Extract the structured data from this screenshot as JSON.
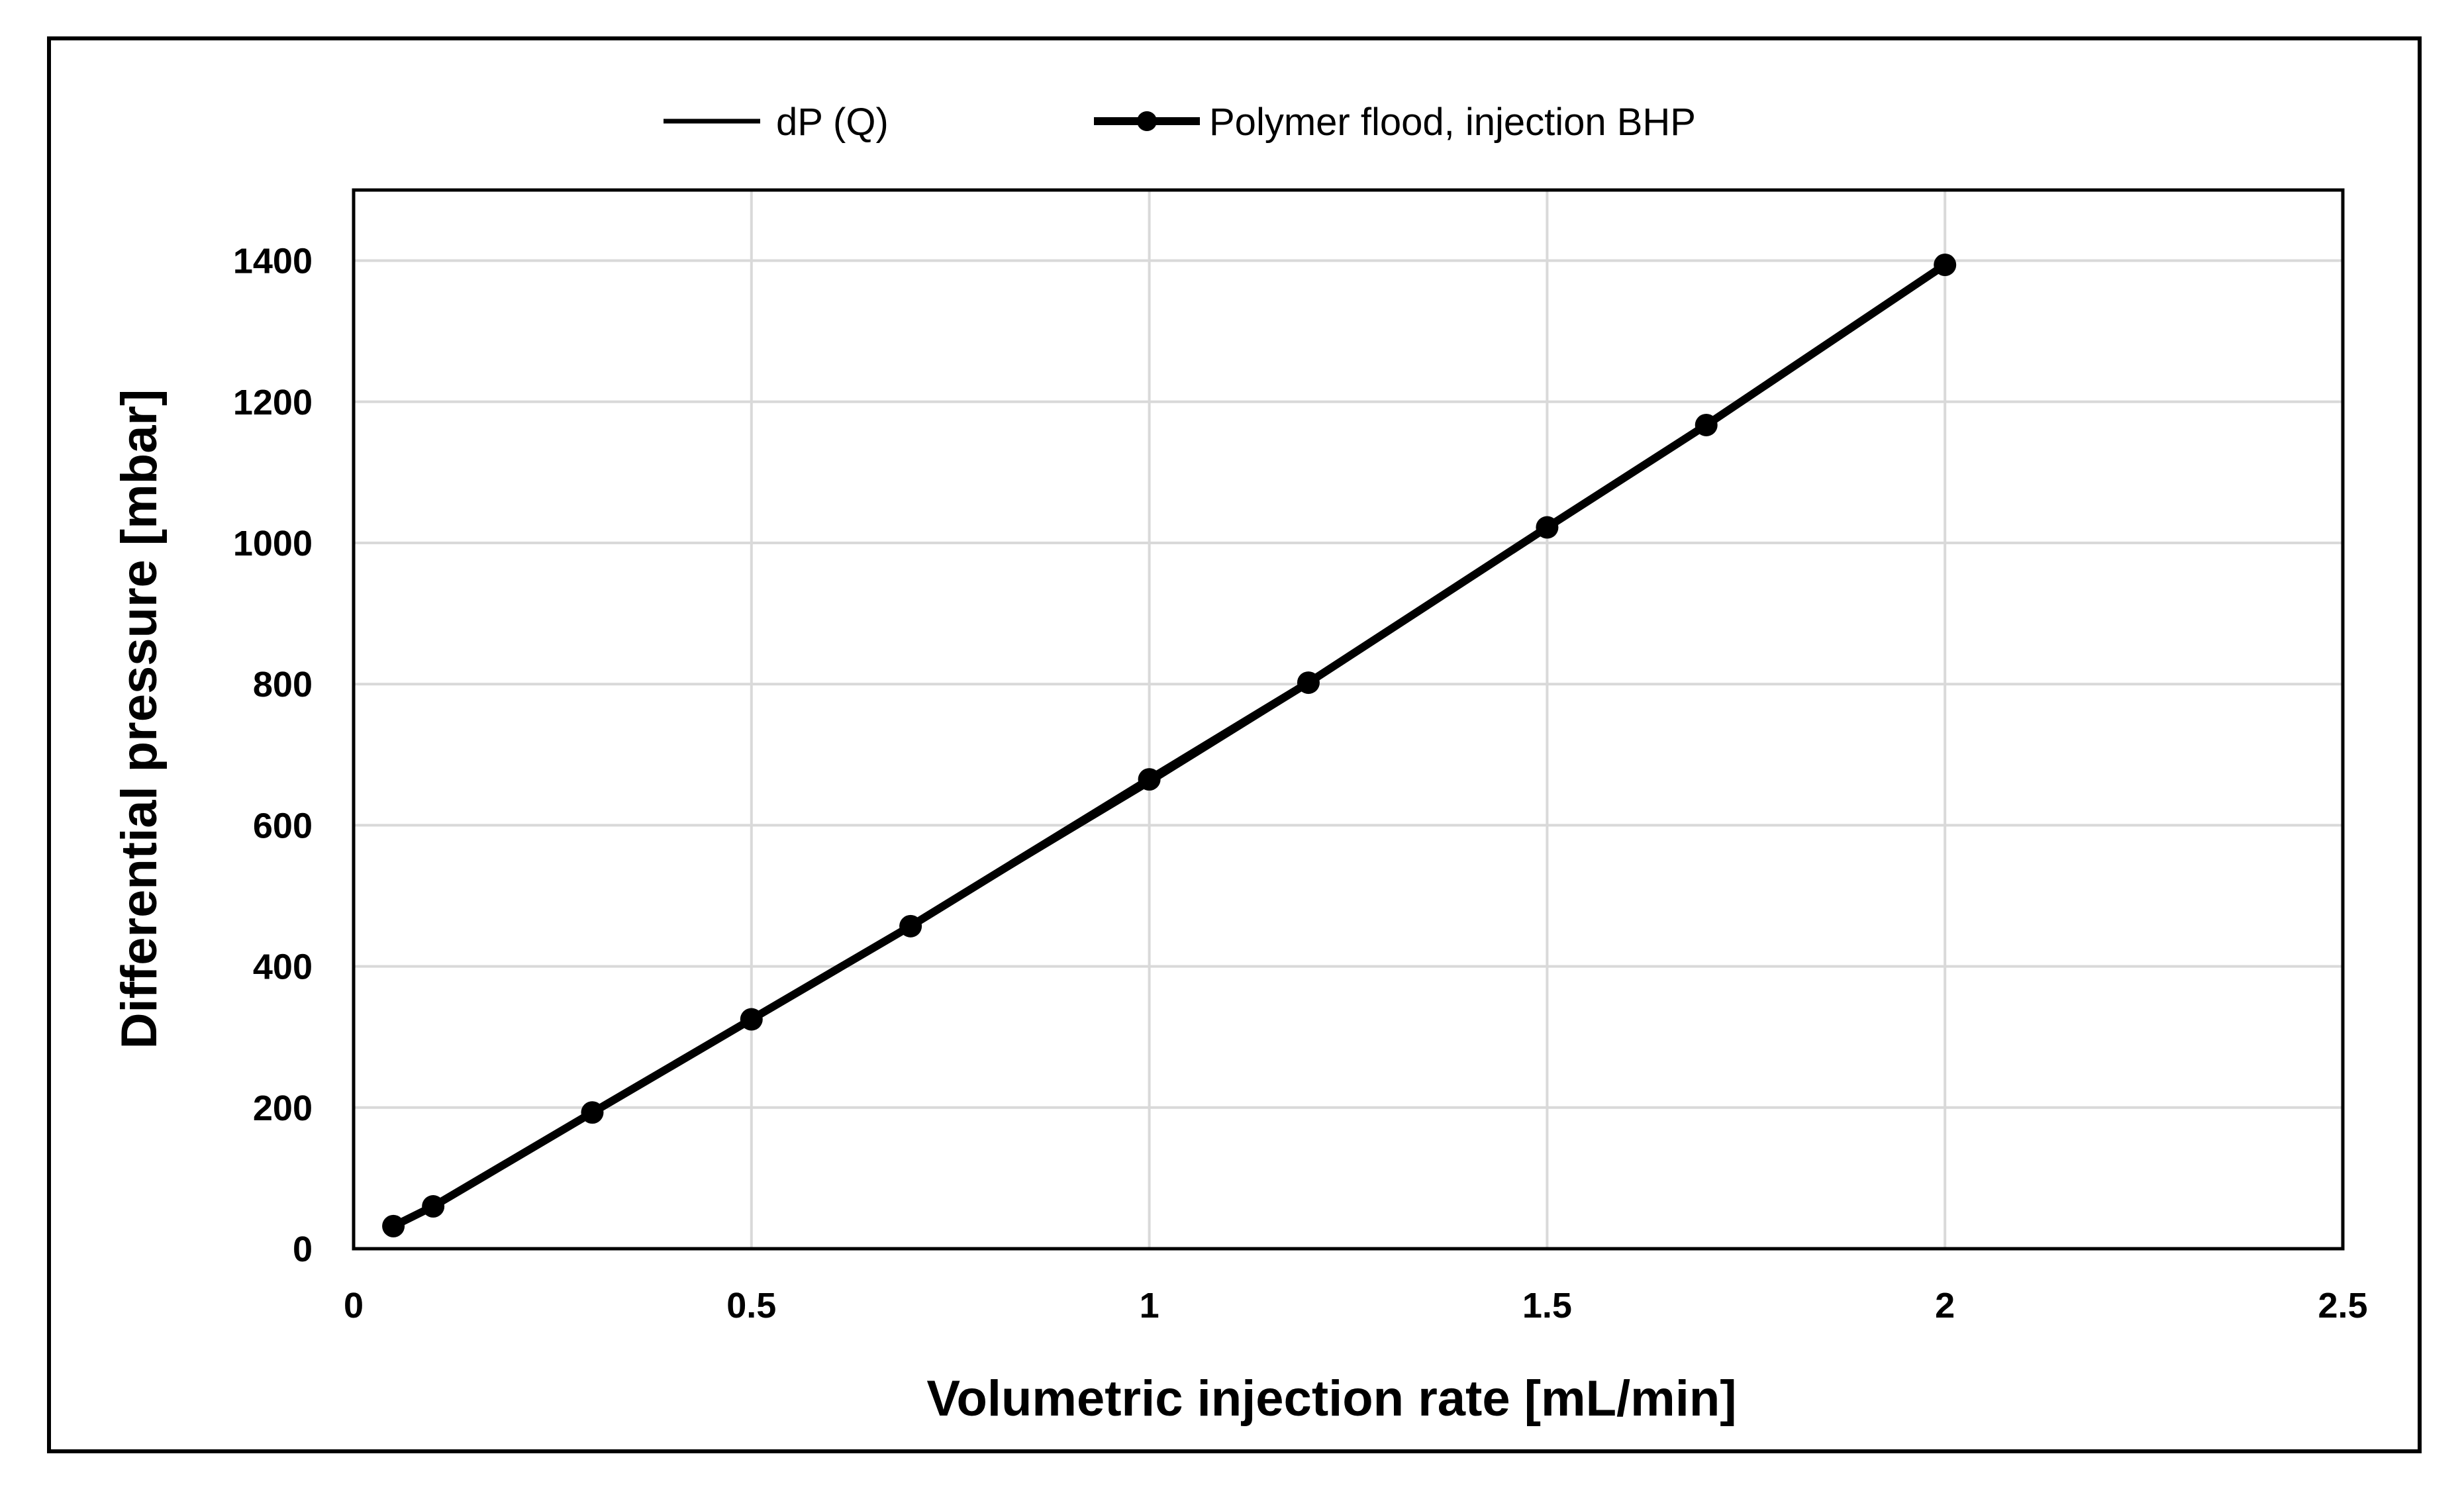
{
  "chart_data": {
    "type": "line",
    "title": "",
    "xlabel": "Volumetric injection rate [mL/min]",
    "ylabel": "Differential pressure [mbar]",
    "xlim": [
      0,
      2.5
    ],
    "ylim": [
      0,
      1500
    ],
    "xticks": [
      0,
      0.5,
      1,
      1.5,
      2,
      2.5
    ],
    "xtick_labels": [
      "0",
      "0.5",
      "1",
      "1.5",
      "2",
      "2.5"
    ],
    "yticks": [
      0,
      200,
      400,
      600,
      800,
      1000,
      1200,
      1400
    ],
    "ytick_labels": [
      "0",
      "200",
      "400",
      "600",
      "800",
      "1000",
      "1200",
      "1400"
    ],
    "grid": true,
    "legend_position": "top",
    "series": [
      {
        "name": "dP (Q)",
        "style": "line",
        "x": [
          0.05,
          0.1,
          0.3,
          0.5,
          0.7,
          1.0,
          1.2,
          1.5,
          1.7,
          2.0
        ],
        "y": [
          32,
          60,
          193,
          325,
          457,
          660,
          800,
          1022,
          1165,
          1392
        ]
      },
      {
        "name": "Polymer flood, injection BHP",
        "style": "line-marker",
        "x": [
          0.05,
          0.1,
          0.3,
          0.5,
          0.7,
          1.0,
          1.2,
          1.5,
          1.7,
          2.0
        ],
        "y": [
          32,
          60,
          193,
          325,
          457,
          665,
          802,
          1022,
          1167,
          1394
        ]
      }
    ],
    "colors": {
      "line": "#000000",
      "grid": "#d9d9d9",
      "frame": "#000000"
    }
  }
}
